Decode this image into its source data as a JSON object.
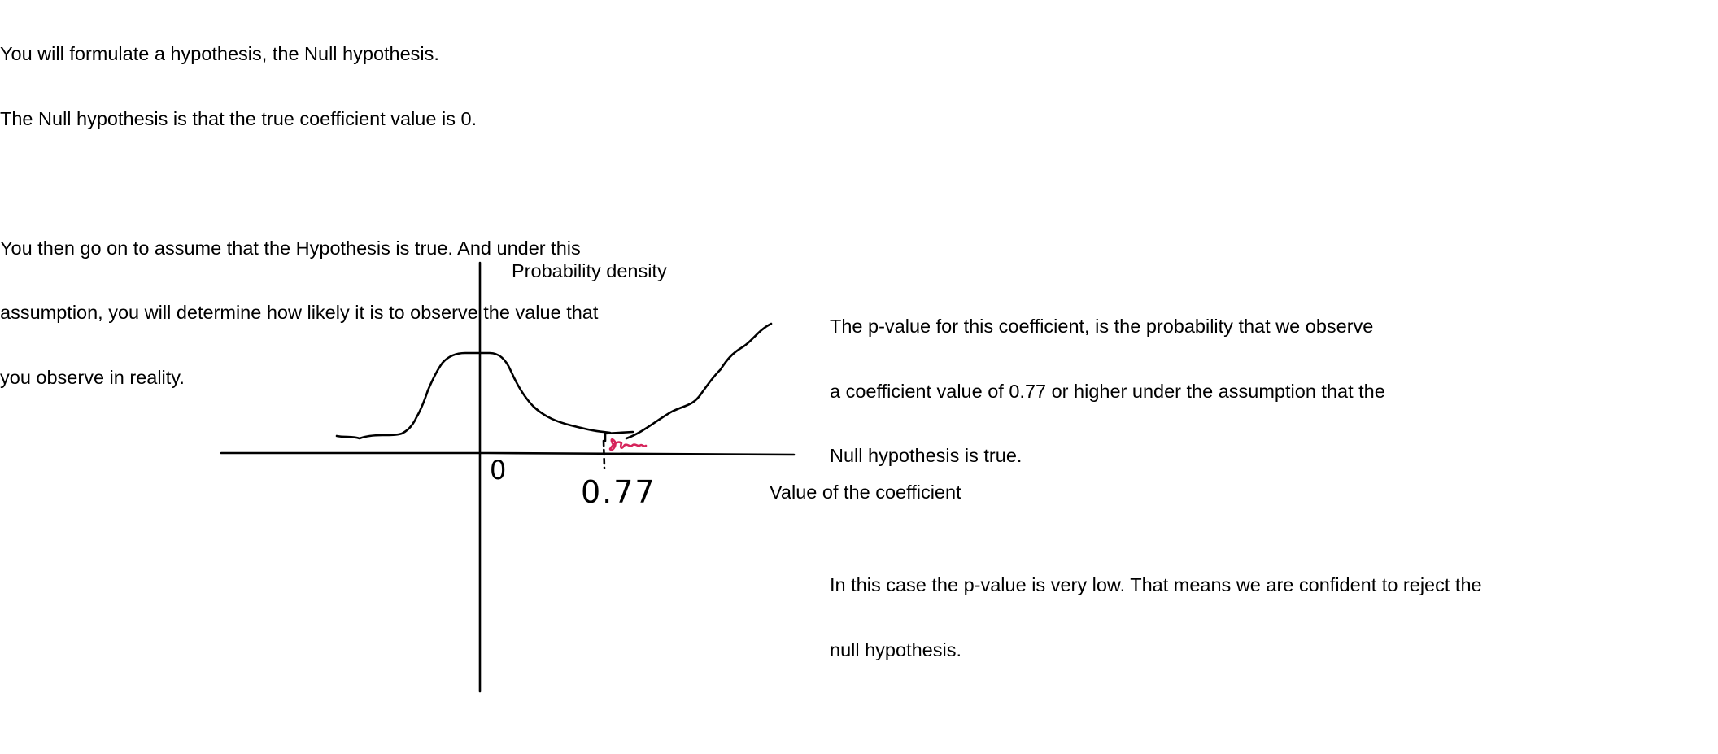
{
  "intro": {
    "line1": "You will formulate a hypothesis, the Null hypothesis.",
    "line2": "The Null hypothesis is that the true coefficient value is 0.",
    "line3": "You then go on to assume that the Hypothesis is true. And under this",
    "line4": "assumption, you will determine how likely it is to observe the value that",
    "line5": "you observe in reality."
  },
  "diagram": {
    "y_axis_label": "Probability density",
    "x_axis_label": "Value of the coefficient",
    "origin_mark": "0",
    "observed_mark": "0.77",
    "colors": {
      "ink": "#000000",
      "shade": "#d6245b"
    }
  },
  "explanation": {
    "line1": "The p-value for this coefficient, is the probability that we observe",
    "line2": "a coefficient value of 0.77 or higher under the assumption that the",
    "line3": "Null hypothesis is true.",
    "line4": "In this case the p-value is very low. That means we are confident to reject the",
    "line5": "null hypothesis."
  }
}
